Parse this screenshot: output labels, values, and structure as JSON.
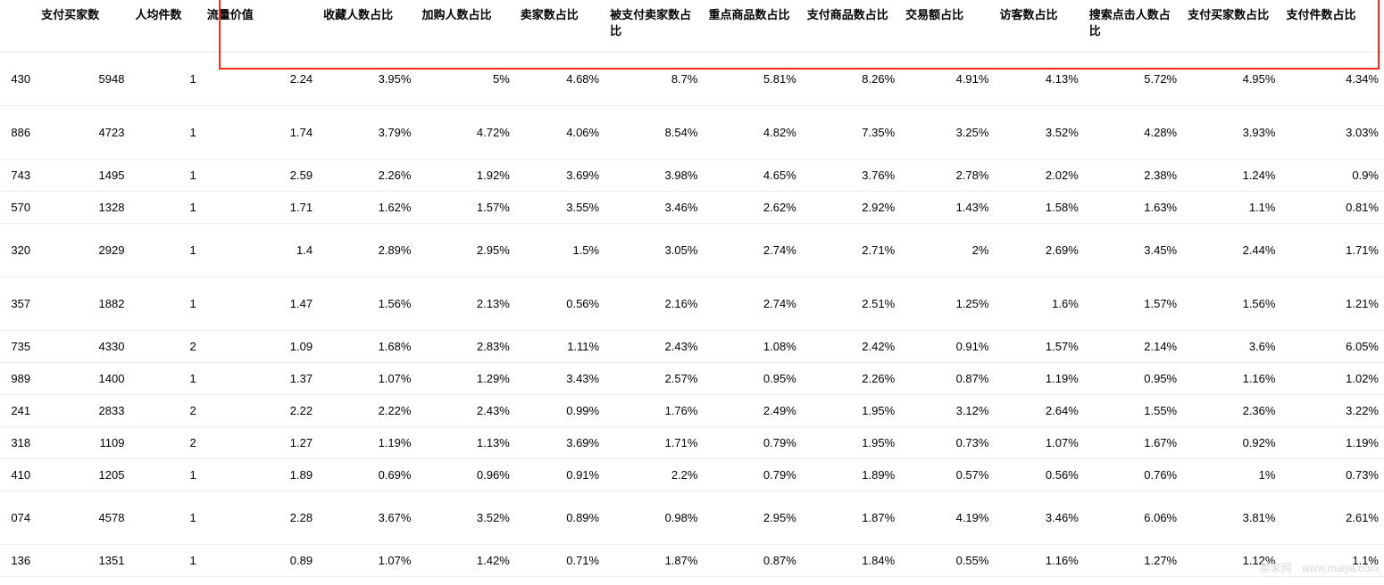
{
  "table": {
    "columns": [
      "",
      "支付买家数",
      "人均件数",
      "流量价值",
      "收藏人数占比",
      "加购人数占比",
      "卖家数占比",
      "被支付卖家数占比",
      "重点商品数占比",
      "支付商品数占比",
      "交易额占比",
      "访客数占比",
      "搜索点击人数占比",
      "支付买家数占比",
      "支付件数占比"
    ],
    "rows": [
      {
        "tall": true,
        "cells": [
          "430",
          "5948",
          "1",
          "2.24",
          "3.95%",
          "5%",
          "4.68%",
          "8.7%",
          "5.81%",
          "8.26%",
          "4.91%",
          "4.13%",
          "5.72%",
          "4.95%",
          "4.34%"
        ]
      },
      {
        "tall": true,
        "cells": [
          "886",
          "4723",
          "1",
          "1.74",
          "3.79%",
          "4.72%",
          "4.06%",
          "8.54%",
          "4.82%",
          "7.35%",
          "3.25%",
          "3.52%",
          "4.28%",
          "3.93%",
          "3.03%"
        ]
      },
      {
        "tall": false,
        "cells": [
          "743",
          "1495",
          "1",
          "2.59",
          "2.26%",
          "1.92%",
          "3.69%",
          "3.98%",
          "4.65%",
          "3.76%",
          "2.78%",
          "2.02%",
          "2.38%",
          "1.24%",
          "0.9%"
        ]
      },
      {
        "tall": false,
        "cells": [
          "570",
          "1328",
          "1",
          "1.71",
          "1.62%",
          "1.57%",
          "3.55%",
          "3.46%",
          "2.62%",
          "2.92%",
          "1.43%",
          "1.58%",
          "1.63%",
          "1.1%",
          "0.81%"
        ]
      },
      {
        "tall": true,
        "cells": [
          "320",
          "2929",
          "1",
          "1.4",
          "2.89%",
          "2.95%",
          "1.5%",
          "3.05%",
          "2.74%",
          "2.71%",
          "2%",
          "2.69%",
          "3.45%",
          "2.44%",
          "1.71%"
        ]
      },
      {
        "tall": true,
        "cells": [
          "357",
          "1882",
          "1",
          "1.47",
          "1.56%",
          "2.13%",
          "0.56%",
          "2.16%",
          "2.74%",
          "2.51%",
          "1.25%",
          "1.6%",
          "1.57%",
          "1.56%",
          "1.21%"
        ]
      },
      {
        "tall": false,
        "cells": [
          "735",
          "4330",
          "2",
          "1.09",
          "1.68%",
          "2.83%",
          "1.11%",
          "2.43%",
          "1.08%",
          "2.42%",
          "0.91%",
          "1.57%",
          "2.14%",
          "3.6%",
          "6.05%"
        ]
      },
      {
        "tall": false,
        "cells": [
          "989",
          "1400",
          "1",
          "1.37",
          "1.07%",
          "1.29%",
          "3.43%",
          "2.57%",
          "0.95%",
          "2.26%",
          "0.87%",
          "1.19%",
          "0.95%",
          "1.16%",
          "1.02%"
        ]
      },
      {
        "tall": false,
        "cells": [
          "241",
          "2833",
          "2",
          "2.22",
          "2.22%",
          "2.43%",
          "0.99%",
          "1.76%",
          "2.49%",
          "1.95%",
          "3.12%",
          "2.64%",
          "1.55%",
          "2.36%",
          "3.22%"
        ]
      },
      {
        "tall": false,
        "cells": [
          "318",
          "1109",
          "2",
          "1.27",
          "1.19%",
          "1.13%",
          "3.69%",
          "1.71%",
          "0.79%",
          "1.95%",
          "0.73%",
          "1.07%",
          "1.67%",
          "0.92%",
          "1.19%"
        ]
      },
      {
        "tall": false,
        "cells": [
          "410",
          "1205",
          "1",
          "1.89",
          "0.69%",
          "0.96%",
          "0.91%",
          "2.2%",
          "0.79%",
          "1.89%",
          "0.57%",
          "0.56%",
          "0.76%",
          "1%",
          "0.73%"
        ]
      },
      {
        "tall": true,
        "cells": [
          "074",
          "4578",
          "1",
          "2.28",
          "3.67%",
          "3.52%",
          "0.89%",
          "0.98%",
          "2.95%",
          "1.87%",
          "4.19%",
          "3.46%",
          "6.06%",
          "3.81%",
          "2.61%"
        ]
      },
      {
        "tall": false,
        "cells": [
          "136",
          "1351",
          "1",
          "0.89",
          "1.07%",
          "1.42%",
          "0.71%",
          "1.87%",
          "0.87%",
          "1.84%",
          "0.55%",
          "1.16%",
          "1.27%",
          "1.12%",
          "1.1%"
        ]
      }
    ]
  },
  "highlight": {
    "color": "#ff2a1a"
  },
  "watermark": {
    "label1": "卖家网",
    "label2": "www.maijia.com"
  }
}
